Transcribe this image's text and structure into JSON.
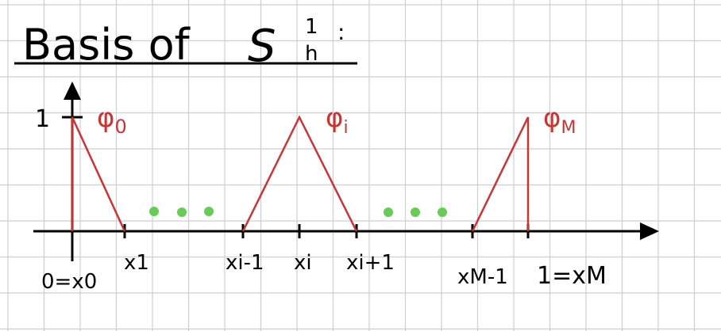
{
  "title": {
    "text": "Basis of",
    "space_symbol": "S",
    "superscript": "1",
    "subscript": "h",
    "suffix": ":"
  },
  "axis": {
    "y_tick_label": "1",
    "x_labels": [
      "0=x0",
      "x1",
      "xi-1",
      "xi",
      "xi+1",
      "xM-1",
      "1=xM"
    ]
  },
  "functions": [
    {
      "name": "φ0",
      "base": "φ",
      "sub": "0"
    },
    {
      "name": "φi",
      "base": "φ",
      "sub": "i"
    },
    {
      "name": "φM",
      "base": "φ",
      "sub": "M"
    }
  ],
  "colors": {
    "ink": "#000000",
    "basis": "#cc3333",
    "dots": "#66cc55",
    "grid": "#cfcfcf",
    "background": "#ffffff"
  }
}
